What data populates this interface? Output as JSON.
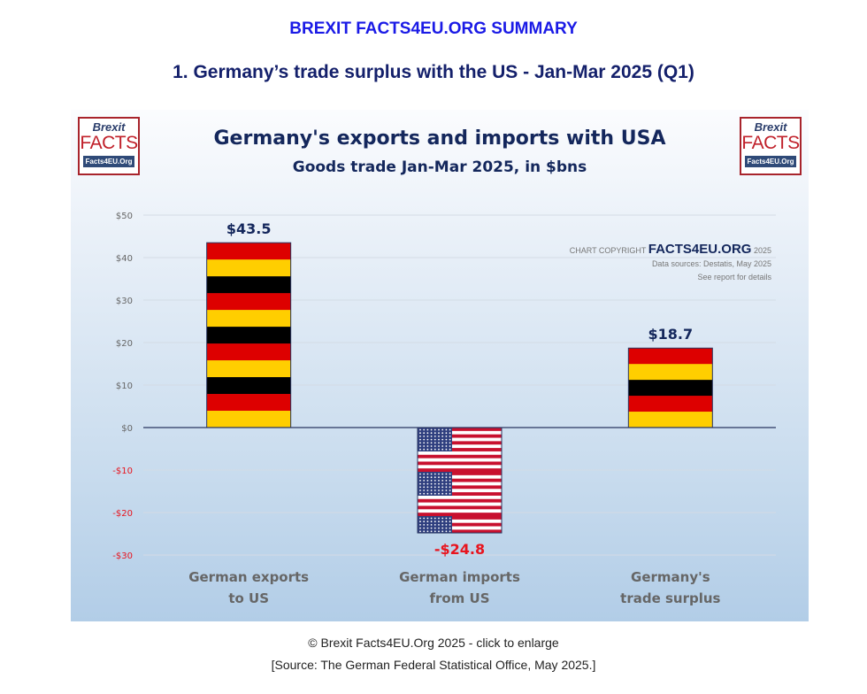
{
  "page": {
    "heading": "BREXIT FACTS4EU.ORG SUMMARY",
    "subheading": "1. Germany’s trade surplus with the US - Jan-Mar 2025 (Q1)",
    "caption": "© Brexit Facts4EU.Org 2025 - click to enlarge",
    "source": "[Source: The German Federal Statistical Office, May 2025.]"
  },
  "logo": {
    "line1": "Brexit",
    "line2": "FACTS",
    "line3": "Facts4EU.Org"
  },
  "copyright": {
    "prefix": "CHART COPYRIGHT",
    "brand": "FACTS4EU.ORG",
    "year": "2025",
    "sources": "Data sources: Destatis, May 2025",
    "note": "See report for details"
  },
  "colors": {
    "positive_label": "#14275c",
    "negative_label": "#e8141e",
    "axis_negative": "#e8141e",
    "de_red": "#dd0000",
    "de_gold": "#ffce00",
    "de_black": "#000000",
    "us_red": "#c8102e",
    "us_blue": "#2f3f7f"
  },
  "chart_data": {
    "type": "bar",
    "title": "Germany's exports and imports with USA",
    "subtitle": "Goods trade Jan-Mar 2025, in $bns",
    "categories": [
      [
        "German exports",
        "to US"
      ],
      [
        "German imports",
        "from US"
      ],
      [
        "Germany's",
        "trade surplus"
      ]
    ],
    "values": [
      43.5,
      -24.8,
      18.7
    ],
    "data_labels": [
      "$43.5",
      "-$24.8",
      "$18.7"
    ],
    "bar_fill": [
      "german-flag",
      "us-flag",
      "german-flag"
    ],
    "ylim": [
      -30,
      50
    ],
    "yticks": [
      50,
      40,
      30,
      20,
      10,
      0,
      -10,
      -20,
      -30
    ],
    "ytick_labels": [
      "$50",
      "$40",
      "$30",
      "$20",
      "$10",
      "$0",
      "-$10",
      "-$20",
      "-$30"
    ],
    "grid": true,
    "legend": "none"
  }
}
